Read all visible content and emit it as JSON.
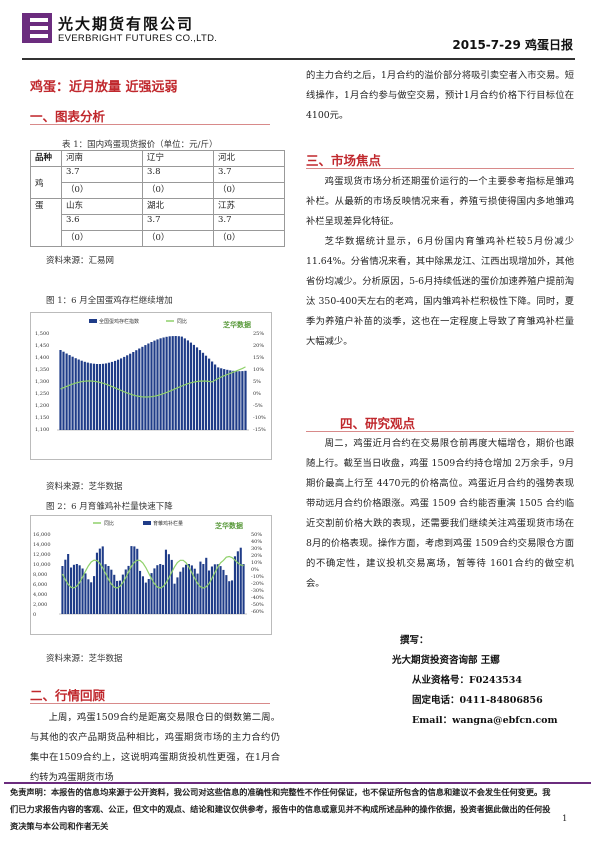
{
  "header": {
    "company_cn": "光大期货有限公司",
    "company_en": "EVERBRIGHT FUTURES CO.,LTD.",
    "report_title": "2015-7-29 鸡蛋日报"
  },
  "main_title": "鸡蛋：近月放量  近强远弱",
  "sections": {
    "s1": "一、图表分析",
    "s2": "二、行情回顾",
    "s3": "三、市场焦点",
    "s4": "四、研究观点"
  },
  "table": {
    "caption": "表 1：国内鸡蛋现货报价（单位：元/斤）",
    "col_header": "品种",
    "row_label_1": "鸡",
    "row_label_2": "蛋",
    "r1": [
      "河南",
      "辽宁",
      "河北"
    ],
    "r2": [
      "3.7",
      "3.8",
      "3.7"
    ],
    "r3": [
      "（0）",
      "（0）",
      "（0）"
    ],
    "r4": [
      "山东",
      "湖北",
      "江苏"
    ],
    "r5": [
      "3.6",
      "3.7",
      "3.7"
    ],
    "r6": [
      "（0）",
      "（0）",
      "（0）"
    ],
    "source": "资料来源：汇易网"
  },
  "fig1": {
    "caption": "图 1：6 月全国蛋鸡存栏继续增加",
    "legend_a": "全国蛋鸡存栏指数",
    "legend_b": "同比",
    "watermark": "芝华数据",
    "source": "资料来源：芝华数据",
    "left_ticks": [
      "1,500",
      "1,450",
      "1,400",
      "1,350",
      "1,300",
      "1,250",
      "1,200",
      "1,150",
      "1,100"
    ],
    "right_ticks": [
      "25%",
      "20%",
      "15%",
      "10%",
      "5%",
      "0%",
      "-5%",
      "-10%",
      "-15%"
    ]
  },
  "fig2": {
    "caption": "图 2：6 月育雏鸡补栏量快速下降",
    "legend_a": "同比",
    "legend_b": "育雏鸡补栏量",
    "watermark": "芝华数据",
    "source": "资料来源：芝华数据",
    "left_ticks": [
      "16,000",
      "14,000",
      "12,000",
      "10,000",
      "8,000",
      "6,000",
      "4,000",
      "2,000",
      "0"
    ],
    "right_ticks": [
      "50%",
      "40%",
      "30%",
      "20%",
      "10%",
      "0%",
      "-10%",
      "-20%",
      "-30%",
      "-40%",
      "-50%",
      "-60%"
    ]
  },
  "review_text": [
    "上周，鸡蛋1509合约是距离交易限仓日的倒数第二周。与其他的农产品期货品种相比，鸡蛋期货市场的主力合约仍集中在1509合约上，这说明鸡蛋期货投机性更强，在1月合约转为鸡蛋期货市场",
    "的主力合约之后，1月合约的溢价部分将吸引卖空者入市交易。短线操作，1月合约参与做空交易，预计1月合约价格下行目标位在4100元。"
  ],
  "focus_text": [
    "鸡蛋现货市场分析还期蛋价运行的一个主要参考指标是雏鸡补栏。从最新的市场反映情况来看，养殖亏损使得国内多地雏鸡补栏呈现差异化特征。",
    "芝华数据统计显示，6月份国内育雏鸡补栏较5月份减少11.64%。分省情况来看，其中除黑龙江、江西出现增加外，其他省份均减少。分析原因，5-6月持续低迷的蛋价加速养殖户提前淘汰 350-400天左右的老鸡，国内雏鸡补栏积极性下降。同时，夏季为养殖户补苗的淡季，这也在一定程度上导致了育雏鸡补栏量大幅减少。"
  ],
  "view_text": [
    "周二，鸡蛋近月合约在交易限仓前再度大幅增仓，期价也跟随上行。截至当日收盘，鸡蛋 1509合约持仓增加 2万余手，9月期价最高上行至 4470元的价格高位。鸡蛋近月合约的强势表现带动远月合约价格跟涨。鸡蛋 1509 合约能否重演 1505 合约临近交割前价格大跌的表现，还需要我们继续关注鸡蛋现货市场在 8月的价格表现。操作方面，考虑到鸡蛋 1509合约交易限仓方面的不确定性，建议投机交易离场，暂等待 1601合约的做空机会。"
  ],
  "author": {
    "label": "撰写：",
    "dept": "光大期货投资咨询部  王娜",
    "cert": "从业资格号：F0243534",
    "phone": "固定电话：0411-84806856",
    "email": "Email：wangna@ebfcn.com"
  },
  "disclaimer": "免责声明：本报告的信息均来源于公开资料，我公司对这些信息的准确性和完整性不作任何保证，也不保证所包含的信息和建议不会发生任何变更。我们已力求报告内容的客观、公正，但文中的观点、结论和建议仅供参考，报告中的信息或意见并不构成所述品种的操作依据，投资者据此做出的任何投资决策与本公司和作者无关",
  "page_number": "1",
  "colors": {
    "brand": "#6b2c7e",
    "accent": "#c0282d"
  }
}
